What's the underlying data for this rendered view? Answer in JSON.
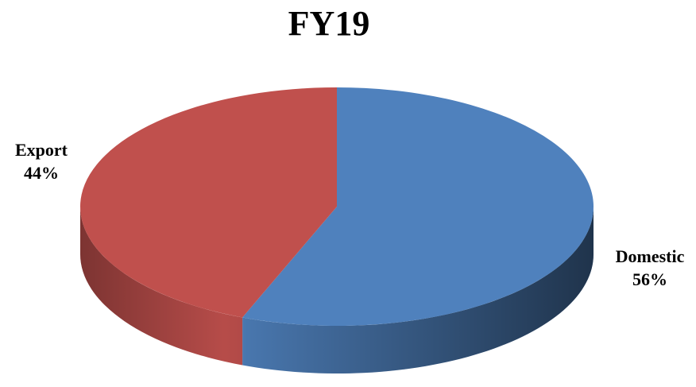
{
  "chart_data": {
    "type": "pie",
    "title": "FY19",
    "categories": [
      "Domestic",
      "Export"
    ],
    "values": [
      56,
      44
    ],
    "value_labels": [
      "56%",
      "44%"
    ],
    "colors": [
      "#4f81bd",
      "#c0504d"
    ]
  }
}
